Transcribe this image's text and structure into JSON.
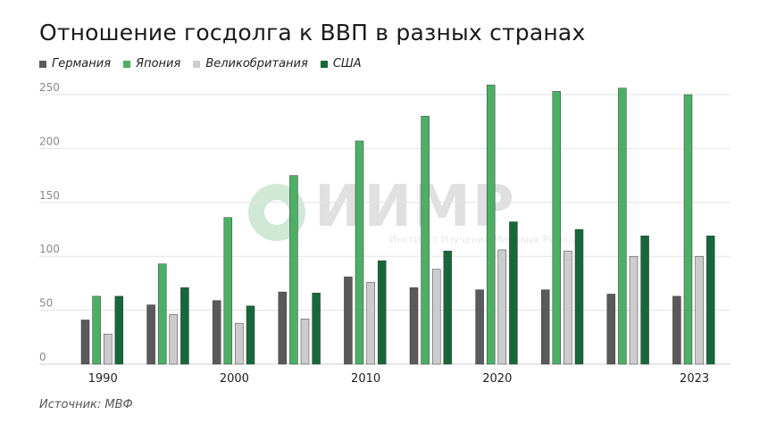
{
  "title": "Отношение госдолга к ВВП в разных странах",
  "source": "Источник: МВФ",
  "watermark": {
    "name": "ИИМР",
    "subtitle": "Институт Изучения Мировых Рынков"
  },
  "colors": {
    "germany": "#5a5a5a",
    "japan": "#4caf66",
    "uk": "#cccccc",
    "usa": "#16683a"
  },
  "chart_data": {
    "type": "bar",
    "title": "Отношение госдолга к ВВП в разных странах",
    "categories": [
      "1990",
      "",
      "2000",
      "",
      "2010",
      "",
      "2020",
      "",
      "",
      "2023"
    ],
    "series": [
      {
        "name": "Германия",
        "color": "#5a5a5a",
        "values": [
          41,
          55,
          59,
          67,
          81,
          71,
          69,
          69,
          65,
          63
        ]
      },
      {
        "name": "Япония",
        "color": "#4caf66",
        "values": [
          63,
          93,
          136,
          175,
          207,
          230,
          259,
          253,
          256,
          250
        ]
      },
      {
        "name": "Великобритания",
        "color": "#cccccc",
        "values": [
          28,
          46,
          38,
          42,
          76,
          88,
          106,
          105,
          100,
          100
        ]
      },
      {
        "name": "США",
        "color": "#16683a",
        "values": [
          63,
          71,
          54,
          66,
          96,
          105,
          132,
          125,
          119,
          119
        ]
      }
    ],
    "yticks": [
      0,
      50,
      100,
      150,
      200,
      250
    ],
    "ylim": [
      0,
      260
    ],
    "grid": true,
    "legend": "top-left"
  }
}
